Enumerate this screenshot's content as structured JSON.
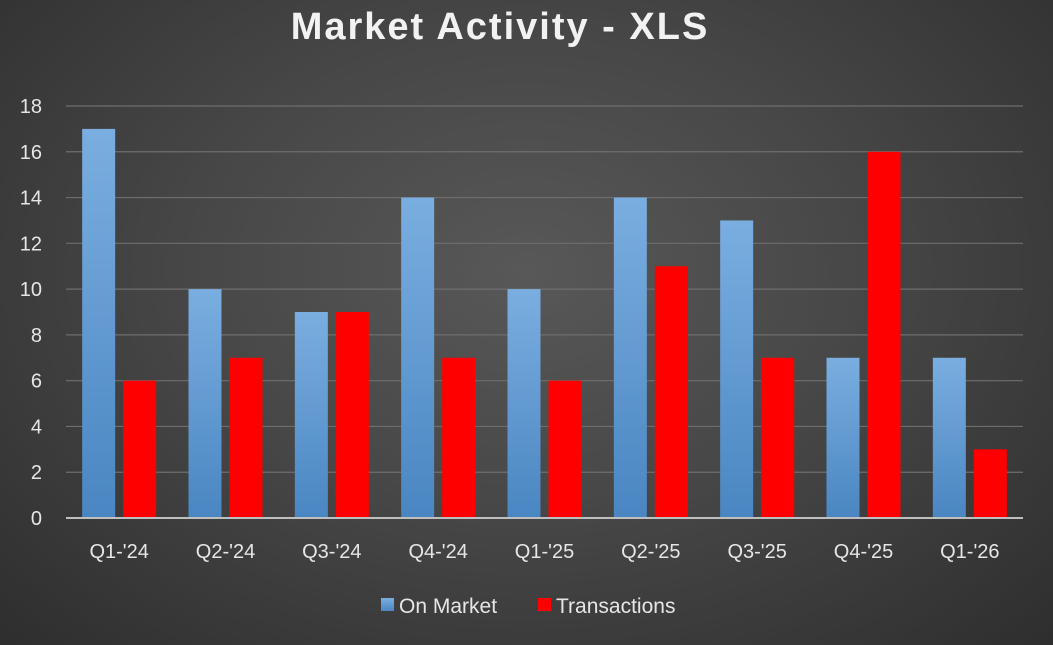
{
  "chart_data": {
    "type": "bar",
    "title": "Market Activity - XLS",
    "categories": [
      "Q1-'24",
      "Q2-'24",
      "Q3-'24",
      "Q4-'24",
      "Q1-'25",
      "Q2-'25",
      "Q3-'25",
      "Q4-'25",
      "Q1-'26"
    ],
    "series": [
      {
        "name": "On Market",
        "values": [
          17,
          10,
          9,
          14,
          10,
          14,
          13,
          7,
          7
        ],
        "color": "#5b9bd5"
      },
      {
        "name": "Transactions",
        "values": [
          6,
          7,
          9,
          7,
          6,
          11,
          7,
          16,
          3
        ],
        "color": "#ff0000"
      }
    ],
    "ylim": [
      0,
      18
    ],
    "yticks": [
      0,
      2,
      4,
      6,
      8,
      10,
      12,
      14,
      16,
      18
    ],
    "grid": true,
    "legend": "bottom"
  }
}
